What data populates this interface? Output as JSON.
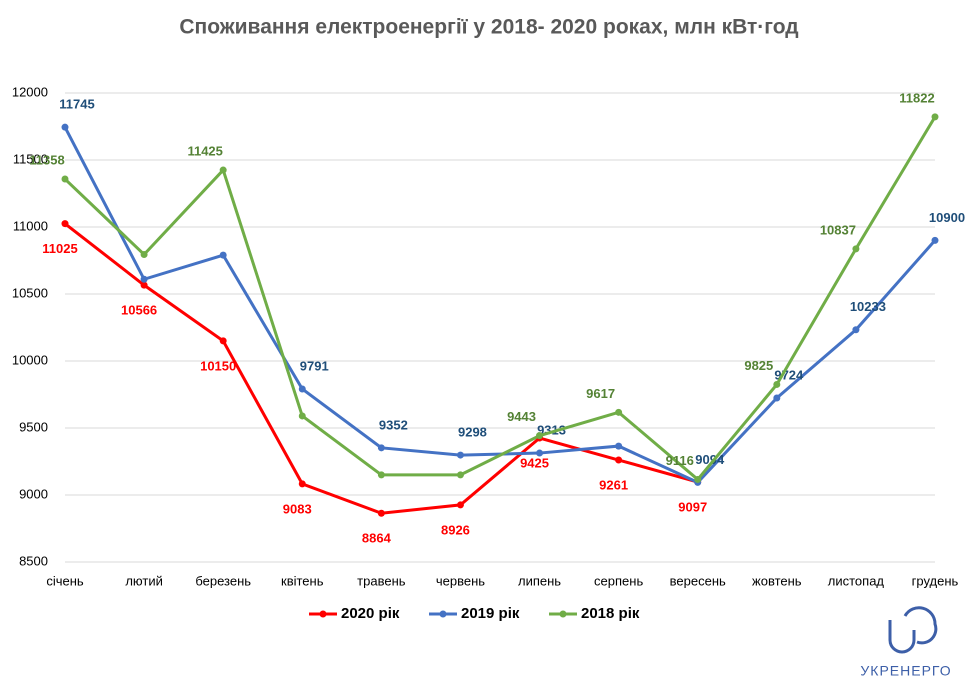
{
  "chart_data": {
    "type": "line",
    "title": "Споживання електроенергії у 2018- 2020 роках, млн кВт·год",
    "categories": [
      "січень",
      "лютий",
      "березень",
      "квітень",
      "травень",
      "червень",
      "липень",
      "серпень",
      "вересень",
      "жовтень",
      "листопад",
      "грудень"
    ],
    "series": [
      {
        "name": "2020 рік",
        "color": "#ff0000",
        "values": [
          11025,
          10566,
          10150,
          9083,
          8864,
          8926,
          9425,
          9261,
          9097,
          null,
          null,
          null
        ],
        "value_labels": [
          "11025",
          "10566",
          "10150",
          "9083",
          "8864",
          "8926",
          "9425",
          "9261",
          "9097",
          null,
          null,
          null
        ]
      },
      {
        "name": "2019 рік",
        "color": "#4472c4",
        "values": [
          11745,
          10610,
          10790,
          9791,
          9352,
          9298,
          9313,
          9365,
          9094,
          9724,
          10233,
          10900
        ],
        "value_labels": [
          "11745",
          null,
          null,
          "9791",
          "9352",
          "9298",
          "9313",
          null,
          "9094",
          "9724",
          "10233",
          "10900"
        ]
      },
      {
        "name": "2018 рік",
        "color": "#70ad47",
        "values": [
          11358,
          10795,
          11425,
          9590,
          9150,
          9150,
          9443,
          9617,
          9116,
          9825,
          10837,
          11822
        ],
        "value_labels": [
          "11358",
          null,
          "11425",
          null,
          null,
          null,
          "9443",
          "9617",
          "9116",
          "9825",
          "10837",
          "11822"
        ]
      }
    ],
    "ylim": [
      8500,
      12000
    ],
    "yticks": [
      8500,
      9000,
      9500,
      10000,
      10500,
      11000,
      11500,
      12000
    ],
    "grid": true,
    "legend": "bottom",
    "logo_text": "УКРЕНЕРГО"
  }
}
